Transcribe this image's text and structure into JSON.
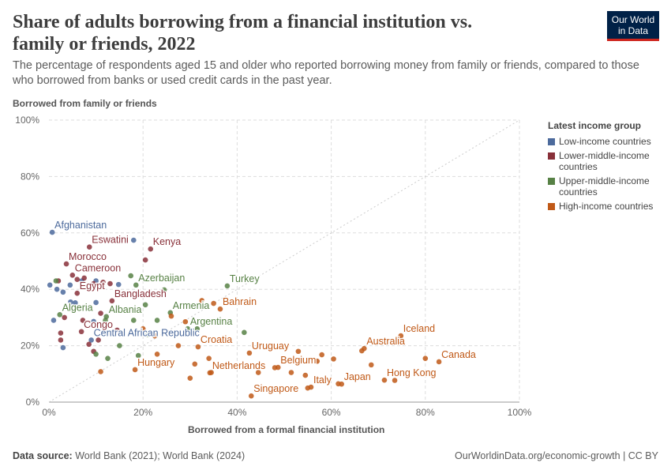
{
  "header": {
    "title": "Share of adults borrowing from a financial institution vs. family or friends, 2022",
    "subtitle": "The percentage of respondents aged 15 and older who reported borrowing money from family or friends, compared to those who borrowed from banks or used credit cards in the past year.",
    "logo": "Our World in Data"
  },
  "footer": {
    "source_label": "Data source:",
    "source": "World Bank (2021); World Bank (2024)",
    "url": "OurWorldinData.org/economic-growth | CC BY"
  },
  "legend": {
    "title": "Latest income group",
    "items": [
      {
        "label": "Low-income countries",
        "color": "#4c6a9c"
      },
      {
        "label": "Lower-middle-income countries",
        "color": "#883039"
      },
      {
        "label": "Upper-middle-income countries",
        "color": "#578145"
      },
      {
        "label": "High-income countries",
        "color": "#c15065"
      }
    ]
  },
  "chart_data": {
    "type": "scatter",
    "xlabel": "Borrowed from a formal financial institution",
    "ylabel": "Borrowed from family or friends",
    "xlim": [
      0,
      100
    ],
    "ylim": [
      0,
      100
    ],
    "xticks": [
      "0%",
      "20%",
      "40%",
      "60%",
      "80%",
      "100%"
    ],
    "yticks": [
      "0%",
      "20%",
      "40%",
      "60%",
      "80%",
      "100%"
    ],
    "grid": true,
    "diagonal_reference_line": true,
    "legend_placement": "right",
    "colors": {
      "Low": "#4c6a9c",
      "Lower-middle": "#883039",
      "Upper-middle": "#578145",
      "High": "#c05917"
    },
    "points": [
      {
        "x": 0.7,
        "y": 60.2,
        "g": "Low",
        "label": "Afghanistan"
      },
      {
        "x": 18,
        "y": 57.4,
        "g": "Low"
      },
      {
        "x": 0.2,
        "y": 41.5,
        "g": "Low"
      },
      {
        "x": 1.7,
        "y": 40,
        "g": "Low"
      },
      {
        "x": 3,
        "y": 39,
        "g": "Low"
      },
      {
        "x": 7,
        "y": 43,
        "g": "Low"
      },
      {
        "x": 4.6,
        "y": 35.5,
        "g": "Low"
      },
      {
        "x": 5.6,
        "y": 35.2,
        "g": "Low"
      },
      {
        "x": 10,
        "y": 43,
        "g": "Low"
      },
      {
        "x": 10,
        "y": 35.3,
        "g": "Low"
      },
      {
        "x": 1,
        "y": 29,
        "g": "Low"
      },
      {
        "x": 3,
        "y": 19.3,
        "g": "Low"
      },
      {
        "x": 14.8,
        "y": 41.7,
        "g": "Low"
      },
      {
        "x": 9.5,
        "y": 28.6,
        "g": "Low"
      },
      {
        "x": 4.5,
        "y": 41.5,
        "g": "Low"
      },
      {
        "x": 9,
        "y": 22,
        "g": "Low",
        "label": "Central African Republic"
      },
      {
        "x": 8.6,
        "y": 55,
        "g": "Lower-middle",
        "label": "Eswatini"
      },
      {
        "x": 21.6,
        "y": 54.3,
        "g": "Lower-middle",
        "label": "Kenya"
      },
      {
        "x": 20.5,
        "y": 50.4,
        "g": "Lower-middle"
      },
      {
        "x": 3.7,
        "y": 49,
        "g": "Lower-middle",
        "label": "Morocco"
      },
      {
        "x": 5,
        "y": 45,
        "g": "Lower-middle",
        "label": "Cameroon"
      },
      {
        "x": 2,
        "y": 43,
        "g": "Lower-middle"
      },
      {
        "x": 6,
        "y": 43.5,
        "g": "Lower-middle"
      },
      {
        "x": 7.5,
        "y": 44,
        "g": "Lower-middle"
      },
      {
        "x": 9.5,
        "y": 42,
        "g": "Lower-middle"
      },
      {
        "x": 11.5,
        "y": 42.5,
        "g": "Lower-middle"
      },
      {
        "x": 13,
        "y": 42,
        "g": "Lower-middle"
      },
      {
        "x": 6,
        "y": 38.6,
        "g": "Lower-middle",
        "label": "Egypt"
      },
      {
        "x": 13.4,
        "y": 35.9,
        "g": "Lower-middle",
        "label": "Bangladesh"
      },
      {
        "x": 3.3,
        "y": 30,
        "g": "Lower-middle"
      },
      {
        "x": 2.5,
        "y": 24.5,
        "g": "Lower-middle"
      },
      {
        "x": 6.9,
        "y": 25,
        "g": "Lower-middle",
        "label": "Congo"
      },
      {
        "x": 7.2,
        "y": 29,
        "g": "Lower-middle"
      },
      {
        "x": 11,
        "y": 31.5,
        "g": "Lower-middle"
      },
      {
        "x": 8.5,
        "y": 20.5,
        "g": "Lower-middle"
      },
      {
        "x": 10.5,
        "y": 22,
        "g": "Lower-middle"
      },
      {
        "x": 2.5,
        "y": 22,
        "g": "Lower-middle"
      },
      {
        "x": 14.5,
        "y": 25.5,
        "g": "Lower-middle"
      },
      {
        "x": 9.5,
        "y": 18,
        "g": "Lower-middle"
      },
      {
        "x": 18.5,
        "y": 41.5,
        "g": "Upper-middle",
        "label": "Azerbaijan"
      },
      {
        "x": 17.4,
        "y": 44.8,
        "g": "Upper-middle"
      },
      {
        "x": 37.9,
        "y": 41.2,
        "g": "Upper-middle",
        "label": "Turkey"
      },
      {
        "x": 24.5,
        "y": 39.8,
        "g": "Upper-middle"
      },
      {
        "x": 2.3,
        "y": 31,
        "g": "Upper-middle",
        "label": "Algeria"
      },
      {
        "x": 12.2,
        "y": 30.3,
        "g": "Upper-middle",
        "label": "Albania"
      },
      {
        "x": 25.8,
        "y": 31.7,
        "g": "Upper-middle",
        "label": "Armenia"
      },
      {
        "x": 29.5,
        "y": 26,
        "g": "Upper-middle",
        "label": "Argentina"
      },
      {
        "x": 31.5,
        "y": 26,
        "g": "Upper-middle"
      },
      {
        "x": 41.5,
        "y": 24.7,
        "g": "Upper-middle"
      },
      {
        "x": 20.5,
        "y": 34.5,
        "g": "Upper-middle"
      },
      {
        "x": 18,
        "y": 29,
        "g": "Upper-middle"
      },
      {
        "x": 21,
        "y": 24,
        "g": "Upper-middle"
      },
      {
        "x": 23,
        "y": 29,
        "g": "Upper-middle"
      },
      {
        "x": 19,
        "y": 16.5,
        "g": "Upper-middle"
      },
      {
        "x": 12.5,
        "y": 15.5,
        "g": "Upper-middle"
      },
      {
        "x": 1.5,
        "y": 43,
        "g": "Upper-middle"
      },
      {
        "x": 10,
        "y": 17,
        "g": "Upper-middle"
      },
      {
        "x": 15,
        "y": 20,
        "g": "Upper-middle"
      },
      {
        "x": 12,
        "y": 29,
        "g": "Upper-middle"
      },
      {
        "x": 36.4,
        "y": 33,
        "g": "High",
        "label": "Bahrain"
      },
      {
        "x": 31.7,
        "y": 19.6,
        "g": "High",
        "label": "Croatia"
      },
      {
        "x": 42.6,
        "y": 17.4,
        "g": "High",
        "label": "Uruguay"
      },
      {
        "x": 34.2,
        "y": 10.4,
        "g": "High",
        "label": "Netherlands"
      },
      {
        "x": 43,
        "y": 2.2,
        "g": "High",
        "label": "Singapore"
      },
      {
        "x": 18.3,
        "y": 11.5,
        "g": "High",
        "label": "Hungary"
      },
      {
        "x": 48.7,
        "y": 12.3,
        "g": "High",
        "label": "Belgium"
      },
      {
        "x": 67,
        "y": 19,
        "g": "High",
        "label": "Australia"
      },
      {
        "x": 74.8,
        "y": 23.5,
        "g": "High",
        "label": "Iceland"
      },
      {
        "x": 82.9,
        "y": 14.3,
        "g": "High",
        "label": "Canada"
      },
      {
        "x": 71.3,
        "y": 7.8,
        "g": "High",
        "label": "Hong Kong"
      },
      {
        "x": 62.2,
        "y": 6.4,
        "g": "High",
        "label": "Japan"
      },
      {
        "x": 55.7,
        "y": 5.3,
        "g": "High",
        "label": "Italy"
      },
      {
        "x": 32.5,
        "y": 36,
        "g": "High"
      },
      {
        "x": 29,
        "y": 28.5,
        "g": "High"
      },
      {
        "x": 26,
        "y": 30.5,
        "g": "High"
      },
      {
        "x": 23,
        "y": 17,
        "g": "High"
      },
      {
        "x": 27.5,
        "y": 20,
        "g": "High"
      },
      {
        "x": 31,
        "y": 13.5,
        "g": "High"
      },
      {
        "x": 30,
        "y": 8.5,
        "g": "High"
      },
      {
        "x": 34,
        "y": 15.5,
        "g": "High"
      },
      {
        "x": 34.5,
        "y": 10.5,
        "g": "High"
      },
      {
        "x": 44.5,
        "y": 10.5,
        "g": "High"
      },
      {
        "x": 48,
        "y": 12.2,
        "g": "High"
      },
      {
        "x": 51.5,
        "y": 10.5,
        "g": "High"
      },
      {
        "x": 53,
        "y": 18,
        "g": "High"
      },
      {
        "x": 54.5,
        "y": 9.5,
        "g": "High"
      },
      {
        "x": 58,
        "y": 16.8,
        "g": "High"
      },
      {
        "x": 60.5,
        "y": 15.3,
        "g": "High"
      },
      {
        "x": 57,
        "y": 14.5,
        "g": "High"
      },
      {
        "x": 66.5,
        "y": 18.2,
        "g": "High"
      },
      {
        "x": 68.5,
        "y": 13.2,
        "g": "High"
      },
      {
        "x": 73.5,
        "y": 7.7,
        "g": "High"
      },
      {
        "x": 80,
        "y": 15.5,
        "g": "High"
      },
      {
        "x": 11,
        "y": 10.8,
        "g": "High"
      },
      {
        "x": 20,
        "y": 26,
        "g": "High"
      },
      {
        "x": 22.5,
        "y": 23.5,
        "g": "High"
      },
      {
        "x": 35,
        "y": 35,
        "g": "High"
      },
      {
        "x": 55,
        "y": 5,
        "g": "High"
      },
      {
        "x": 61.5,
        "y": 6.5,
        "g": "High"
      }
    ]
  }
}
